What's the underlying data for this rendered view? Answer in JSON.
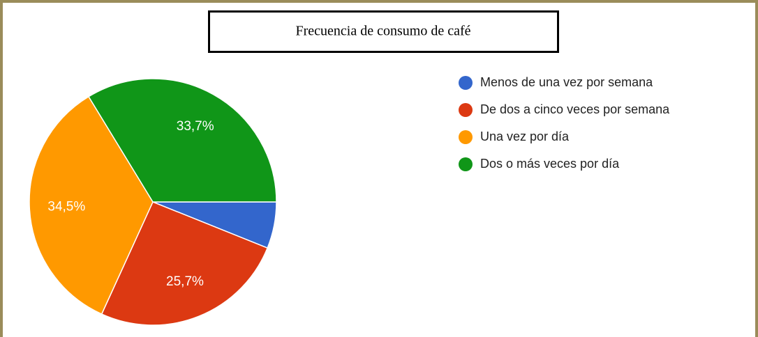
{
  "chart_data": {
    "type": "pie",
    "title": "Frecuencia de consumo de café",
    "categories": [
      "Menos de una vez por semana",
      "De dos a cinco veces por semana",
      "Una vez por día",
      "Dos o más veces por día"
    ],
    "values": [
      6.1,
      25.7,
      34.5,
      33.7
    ],
    "value_labels": [
      null,
      "25,7%",
      "34,5%",
      "33,7%"
    ],
    "colors": [
      "#3366cc",
      "#dc3912",
      "#ff9900",
      "#109618"
    ],
    "legend": "right"
  }
}
